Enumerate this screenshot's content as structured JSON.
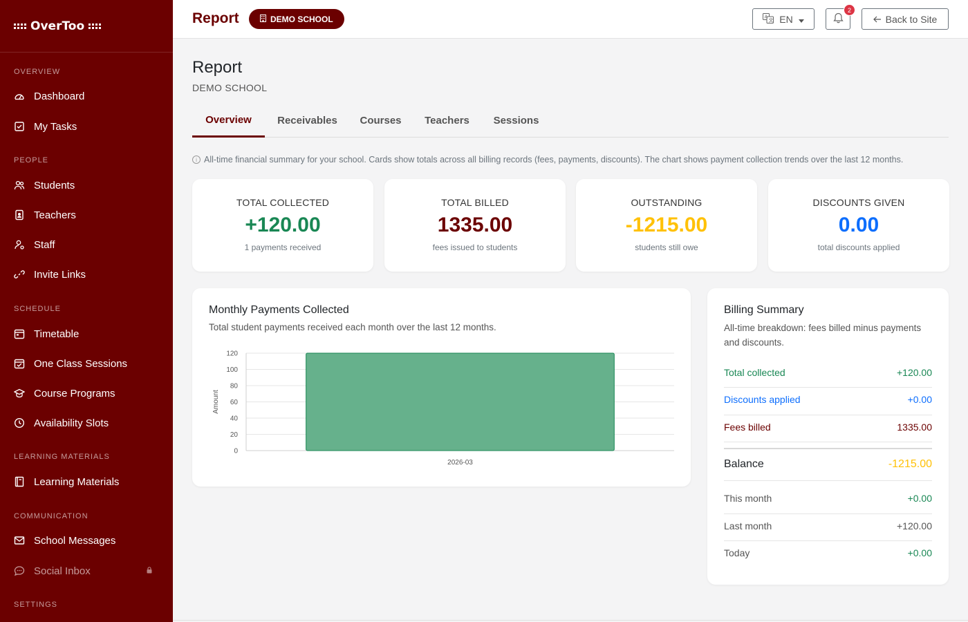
{
  "brand": {
    "name": "OverToo"
  },
  "sidebar": {
    "sections": [
      {
        "label": "OVERVIEW"
      },
      {
        "label": "PEOPLE"
      },
      {
        "label": "SCHEDULE"
      },
      {
        "label": "LEARNING MATERIALS"
      },
      {
        "label": "COMMUNICATION"
      },
      {
        "label": "SETTINGS"
      }
    ],
    "items": [
      {
        "label": "Dashboard",
        "icon": "dashboard-icon"
      },
      {
        "label": "My Tasks",
        "icon": "tasks-icon"
      },
      {
        "label": "Students",
        "icon": "students-icon"
      },
      {
        "label": "Teachers",
        "icon": "teachers-icon"
      },
      {
        "label": "Staff",
        "icon": "staff-icon"
      },
      {
        "label": "Invite Links",
        "icon": "link-icon"
      },
      {
        "label": "Timetable",
        "icon": "calendar-icon"
      },
      {
        "label": "One Class Sessions",
        "icon": "calendar-check-icon"
      },
      {
        "label": "Course Programs",
        "icon": "graduation-cap-icon"
      },
      {
        "label": "Availability Slots",
        "icon": "clock-icon"
      },
      {
        "label": "Learning Materials",
        "icon": "book-icon"
      },
      {
        "label": "School Messages",
        "icon": "envelope-icon"
      },
      {
        "label": "Social Inbox",
        "icon": "chat-icon",
        "locked": true
      }
    ]
  },
  "header": {
    "title": "Report",
    "school_badge": "DEMO SCHOOL",
    "language": "EN",
    "notification_count": "2",
    "back_label": "Back to Site"
  },
  "page": {
    "title": "Report",
    "subtitle": "DEMO SCHOOL",
    "tabs": [
      {
        "label": "Overview",
        "active": true
      },
      {
        "label": "Receivables"
      },
      {
        "label": "Courses"
      },
      {
        "label": "Teachers"
      },
      {
        "label": "Sessions"
      }
    ],
    "info": "All-time financial summary for your school. Cards show totals across all billing records (fees, payments, discounts). The chart shows payment collection trends over the last 12 months."
  },
  "stats": [
    {
      "label": "TOTAL COLLECTED",
      "value": "+120.00",
      "caption": "1 payments received",
      "color": "#198754"
    },
    {
      "label": "TOTAL BILLED",
      "value": "1335.00",
      "caption": "fees issued to students",
      "color": "#6b0000"
    },
    {
      "label": "OUTSTANDING",
      "value": "-1215.00",
      "caption": "students still owe",
      "color": "#ffc107"
    },
    {
      "label": "DISCOUNTS GIVEN",
      "value": "0.00",
      "caption": "total discounts applied",
      "color": "#0d6efd"
    }
  ],
  "monthly_chart": {
    "title": "Monthly Payments Collected",
    "subtitle": "Total student payments received each month over the last 12 months."
  },
  "chart_data": {
    "type": "bar",
    "categories": [
      "2026-03"
    ],
    "values": [
      120
    ],
    "ylabel": "Amount",
    "ylim": [
      0,
      120
    ],
    "yticks": [
      0,
      20,
      40,
      60,
      80,
      100,
      120
    ],
    "grid": true,
    "bar_color": "#66b18c"
  },
  "billing": {
    "title": "Billing Summary",
    "subtitle": "All-time breakdown: fees billed minus payments and discounts.",
    "rows": [
      {
        "label": "Total collected",
        "value": "+120.00"
      },
      {
        "label": "Discounts applied",
        "value": "+0.00"
      },
      {
        "label": "Fees billed",
        "value": "1335.00"
      },
      {
        "label": "Balance",
        "value": "-1215.00"
      },
      {
        "label": "This month",
        "value": "+0.00"
      },
      {
        "label": "Last month",
        "value": "+120.00"
      },
      {
        "label": "Today",
        "value": "+0.00"
      }
    ]
  },
  "colors": {
    "brand": "#6b0000",
    "success": "#198754",
    "info": "#0d6efd",
    "warning": "#ffc107"
  }
}
